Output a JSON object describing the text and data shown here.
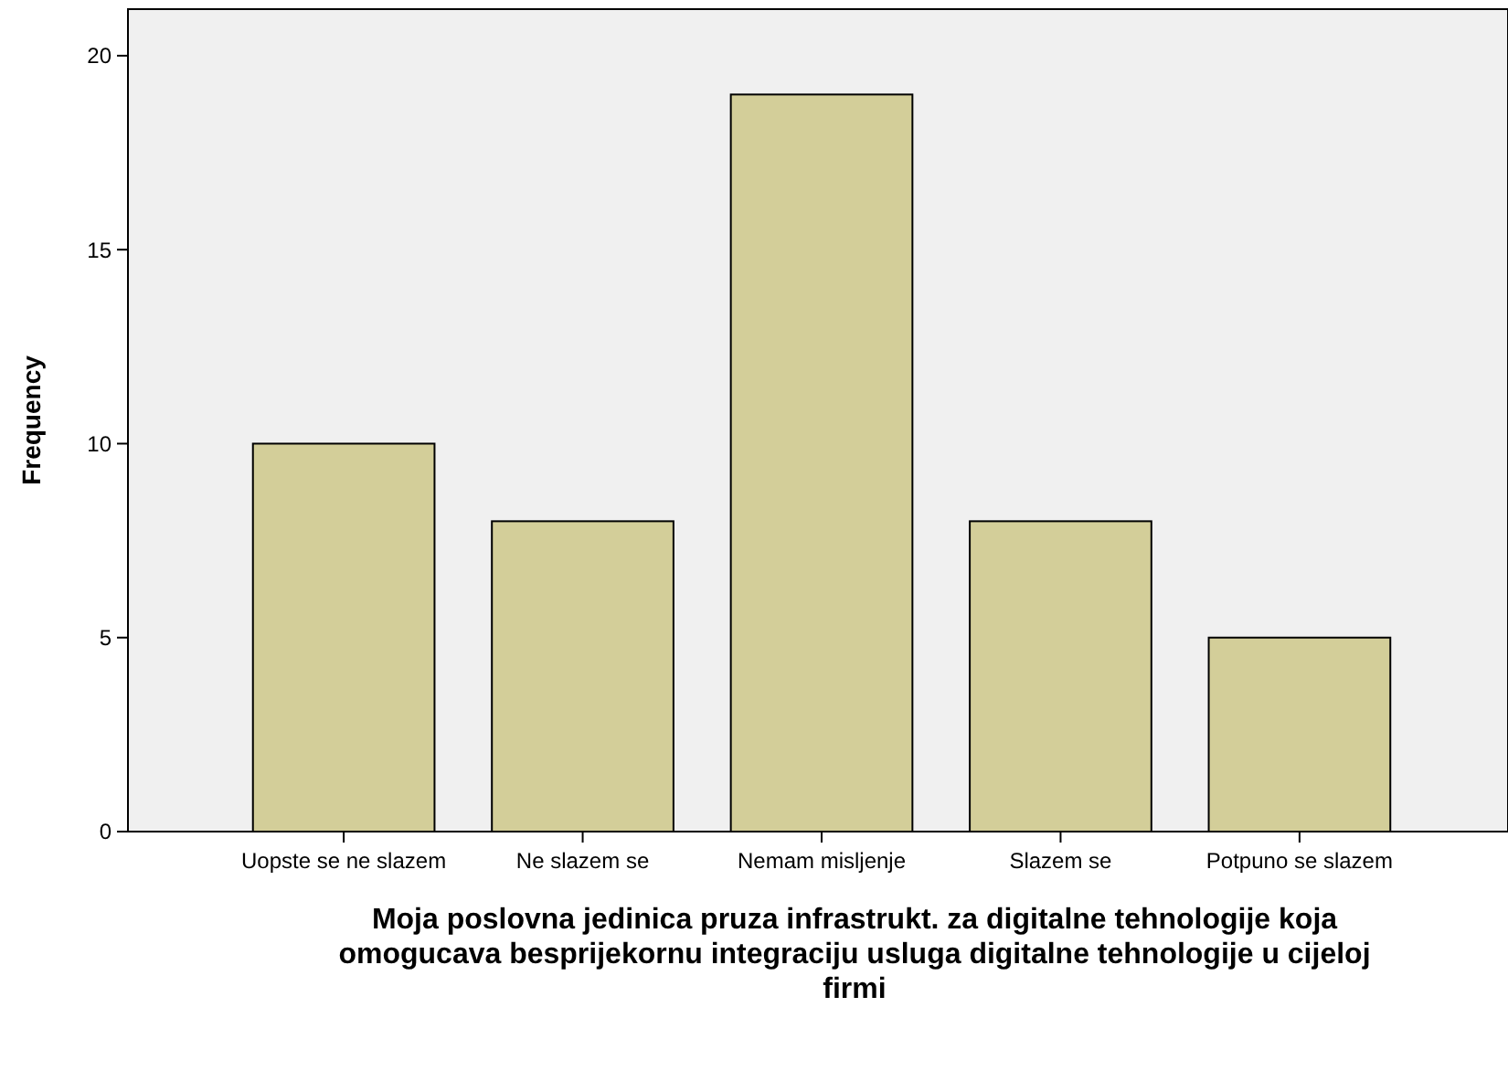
{
  "chart_data": {
    "type": "bar",
    "xlabel": "Moja poslovna jedinica pruza infrastrukt. za digitalne tehnologije koja omogucava besprijekornu integraciju usluga digitalne tehnologije u cijeloj firmi",
    "ylabel": "Frequency",
    "categories": [
      "Uopste se ne slazem",
      "Ne slazem se",
      "Nemam misljenje",
      "Slazem se",
      "Potpuno se slazem"
    ],
    "values": [
      10,
      8,
      19,
      8,
      5
    ],
    "color": "#d3ce99",
    "ylim": [
      0,
      21.2
    ],
    "yticks": [
      0,
      5,
      10,
      15,
      20
    ],
    "grid": false
  }
}
